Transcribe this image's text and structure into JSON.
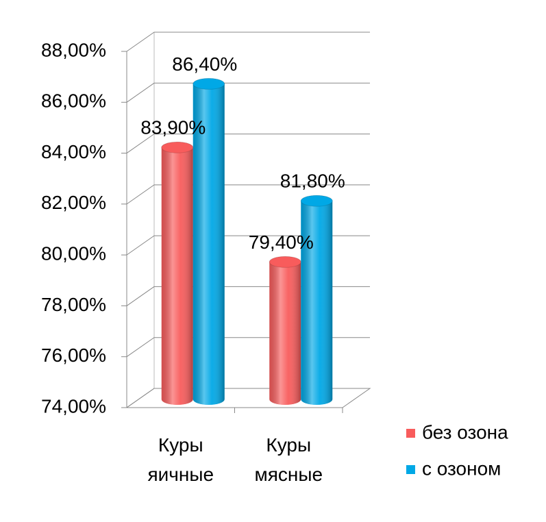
{
  "chart_data": {
    "type": "bar3d",
    "categories": [
      "Куры яичные",
      "Куры мясные"
    ],
    "series": [
      {
        "name": "без озона",
        "color": "#f85c5c",
        "values": [
          83.9,
          79.4
        ],
        "value_labels": [
          "83,90%",
          "79,40%"
        ]
      },
      {
        "name": "с озоном",
        "color": "#00a8e6",
        "values": [
          86.4,
          81.8
        ],
        "value_labels": [
          "86,40%",
          "81,80%"
        ]
      }
    ],
    "ylim": [
      74,
      88
    ],
    "yticks": [
      {
        "value": 74,
        "label": "74,00%"
      },
      {
        "value": 76,
        "label": "76,00%"
      },
      {
        "value": 78,
        "label": "78,00%"
      },
      {
        "value": 80,
        "label": "80,00%"
      },
      {
        "value": 82,
        "label": "82,00%"
      },
      {
        "value": 84,
        "label": "84,00%"
      },
      {
        "value": 86,
        "label": "86,00%"
      },
      {
        "value": 88,
        "label": "88,00%"
      }
    ],
    "grid": true,
    "legend": "right"
  }
}
